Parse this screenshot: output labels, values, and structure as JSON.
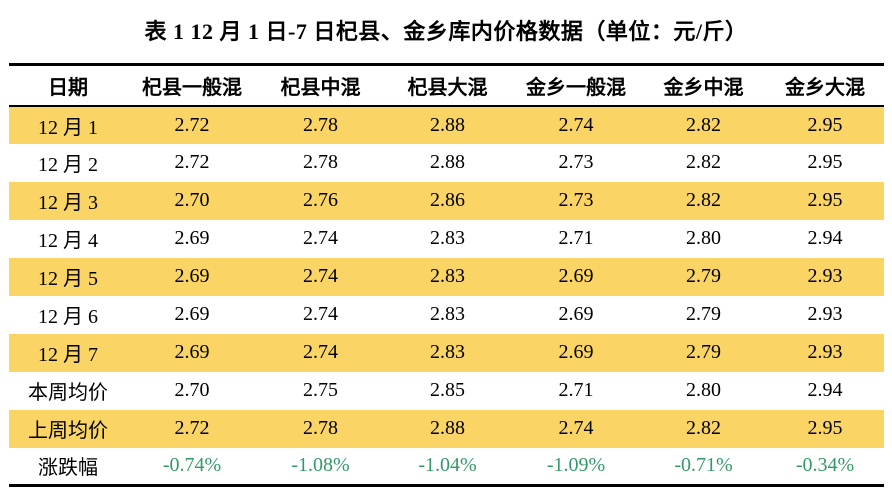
{
  "title": "表 1  12 月 1 日-7 日杞县、金乡库内价格数据（单位：元/斤）",
  "colors": {
    "row_highlight": "#FAD464",
    "change_text": "#339966",
    "border": "#000000"
  },
  "chart_data": {
    "type": "table",
    "title": "表 1  12 月 1 日-7 日杞县、金乡库内价格数据（单位：元/斤）",
    "unit": "元/斤",
    "headers": [
      "日期",
      "杞县一般混",
      "杞县中混",
      "杞县大混",
      "金乡一般混",
      "金乡中混",
      "金乡大混"
    ],
    "rows": [
      {
        "label": "12 月 1",
        "highlight": true,
        "values": [
          "2.72",
          "2.78",
          "2.88",
          "2.74",
          "2.82",
          "2.95"
        ]
      },
      {
        "label": "12 月 2",
        "highlight": false,
        "values": [
          "2.72",
          "2.78",
          "2.88",
          "2.73",
          "2.82",
          "2.95"
        ]
      },
      {
        "label": "12 月 3",
        "highlight": true,
        "values": [
          "2.70",
          "2.76",
          "2.86",
          "2.73",
          "2.82",
          "2.95"
        ]
      },
      {
        "label": "12 月 4",
        "highlight": false,
        "values": [
          "2.69",
          "2.74",
          "2.83",
          "2.71",
          "2.80",
          "2.94"
        ]
      },
      {
        "label": "12 月 5",
        "highlight": true,
        "values": [
          "2.69",
          "2.74",
          "2.83",
          "2.69",
          "2.79",
          "2.93"
        ]
      },
      {
        "label": "12 月 6",
        "highlight": false,
        "values": [
          "2.69",
          "2.74",
          "2.83",
          "2.69",
          "2.79",
          "2.93"
        ]
      },
      {
        "label": "12 月 7",
        "highlight": true,
        "values": [
          "2.69",
          "2.74",
          "2.83",
          "2.69",
          "2.79",
          "2.93"
        ]
      },
      {
        "label": "本周均价",
        "highlight": false,
        "values": [
          "2.70",
          "2.75",
          "2.85",
          "2.71",
          "2.80",
          "2.94"
        ]
      },
      {
        "label": "上周均价",
        "highlight": true,
        "values": [
          "2.72",
          "2.78",
          "2.88",
          "2.74",
          "2.82",
          "2.95"
        ]
      },
      {
        "label": "涨跌幅",
        "highlight": false,
        "change_row": true,
        "values": [
          "-0.74%",
          "-1.08%",
          "-1.04%",
          "-1.09%",
          "-0.71%",
          "-0.34%"
        ]
      }
    ]
  }
}
